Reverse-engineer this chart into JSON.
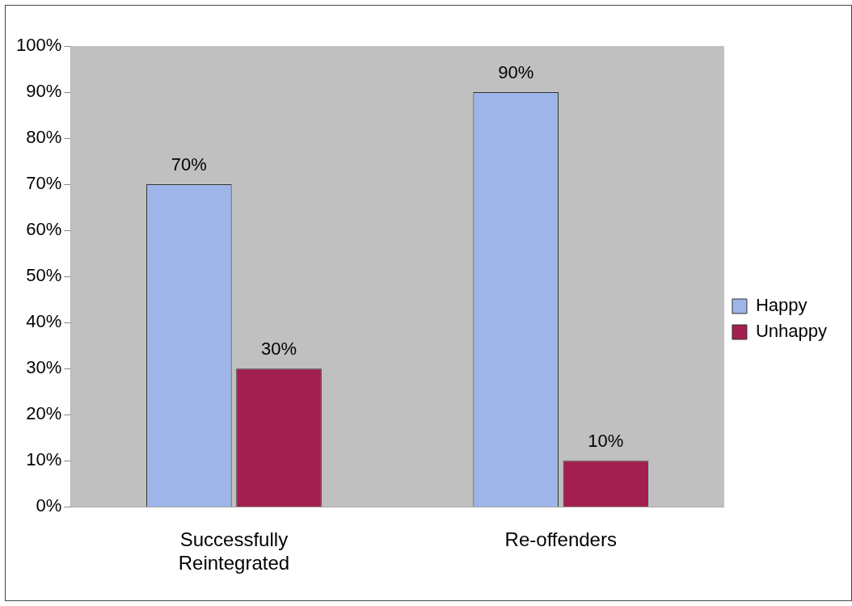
{
  "chart_data": {
    "type": "bar",
    "categories": [
      "Successfully Reintegrated",
      "Re-offenders"
    ],
    "series": [
      {
        "name": "Happy",
        "color": "#9db5e8",
        "values": [
          70,
          90
        ],
        "value_labels": [
          "70%",
          "90%"
        ]
      },
      {
        "name": "Unhappy",
        "color": "#a31f50",
        "values": [
          30,
          10
        ],
        "value_labels": [
          "30%",
          "10%"
        ]
      }
    ],
    "ylim": [
      0,
      100
    ],
    "yticks": [
      {
        "value": 0,
        "label": "0%"
      },
      {
        "value": 10,
        "label": "10%"
      },
      {
        "value": 20,
        "label": "20%"
      },
      {
        "value": 30,
        "label": "30%"
      },
      {
        "value": 40,
        "label": "40%"
      },
      {
        "value": 50,
        "label": "50%"
      },
      {
        "value": 60,
        "label": "60%"
      },
      {
        "value": 70,
        "label": "70%"
      },
      {
        "value": 80,
        "label": "80%"
      },
      {
        "value": 90,
        "label": "90%"
      },
      {
        "value": 100,
        "label": "100%"
      }
    ],
    "grid": false,
    "legend": "right"
  }
}
